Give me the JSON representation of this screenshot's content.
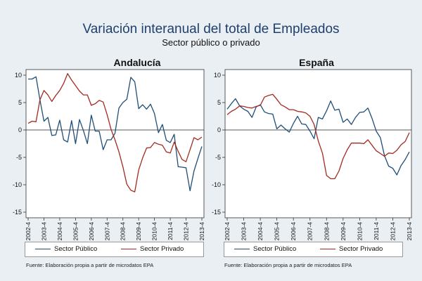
{
  "title": "Variación interanual del total de Empleados",
  "subtitle": "Sector público o privado",
  "source_note": "Fuente: Elaboración propia a partir de microdatos EPA",
  "legend": {
    "public_label": "Sector Público",
    "private_label": "Sector Privado"
  },
  "colors": {
    "public": "#1f4e79",
    "private": "#a42a20",
    "plot_bg": "#ffffff",
    "page_bg": "#eaeff3"
  },
  "chart_data": [
    {
      "type": "line",
      "title": "Andalucía",
      "x_tick_labels": [
        "2002-4",
        "2003-4",
        "2004-4",
        "2005-4",
        "2006-4",
        "2007-4",
        "2008-4",
        "2009-4",
        "2010-4",
        "2011-4",
        "2012-4",
        "2013-4"
      ],
      "x_range": [
        0,
        44
      ],
      "ylim": [
        -15,
        10
      ],
      "y_ticks": [
        -15,
        -10,
        -5,
        0,
        5,
        10
      ],
      "grid": false,
      "legend_position": "bottom",
      "series": [
        {
          "name": "Sector Público",
          "color_key": "public",
          "values": [
            9.3,
            9.3,
            9.7,
            5.5,
            1.6,
            2.3,
            -1.0,
            -0.9,
            1.8,
            -1.8,
            -2.2,
            1.7,
            -2.5,
            1.9,
            -0.1,
            -2.5,
            2.7,
            -0.2,
            -0.2,
            -3.6,
            -1.8,
            -1.8,
            -0.6,
            4.0,
            5.0,
            5.6,
            9.6,
            8.8,
            3.9,
            4.6,
            3.8,
            4.7,
            3.0,
            -0.5,
            1.0,
            -1.9,
            -2.3,
            -0.8,
            -6.7,
            -6.8,
            -6.9,
            -11.1,
            -7.5,
            -5.2,
            -3.0
          ]
        },
        {
          "name": "Sector Privado",
          "color_key": "private",
          "values": [
            1.2,
            1.6,
            1.5,
            5.5,
            7.2,
            6.4,
            5.2,
            6.3,
            7.2,
            8.5,
            10.3,
            9.1,
            8.1,
            7.1,
            6.4,
            6.4,
            4.5,
            4.8,
            5.4,
            5.1,
            2.8,
            0.1,
            -1.8,
            -4.0,
            -6.7,
            -9.9,
            -11.0,
            -11.3,
            -7.3,
            -5.1,
            -3.3,
            -3.2,
            -2.3,
            -2.6,
            -2.8,
            -4.0,
            -4.2,
            -2.2,
            -3.9,
            -5.4,
            -5.8,
            -3.6,
            -1.4,
            -1.8,
            -1.3
          ]
        }
      ]
    },
    {
      "type": "line",
      "title": "España",
      "x_tick_labels": [
        "2002-4",
        "2003-4",
        "2004-4",
        "2005-4",
        "2006-4",
        "2007-4",
        "2008-4",
        "2009-4",
        "2010-4",
        "2011-4",
        "2012-4",
        "2013-4"
      ],
      "x_range": [
        0,
        44
      ],
      "ylim": [
        -15,
        10
      ],
      "y_ticks": [
        -15,
        -10,
        -5,
        0,
        5,
        10
      ],
      "grid": false,
      "legend_position": "bottom",
      "series": [
        {
          "name": "Sector Público",
          "color_key": "public",
          "values": [
            3.8,
            4.8,
            5.7,
            4.4,
            3.8,
            3.4,
            2.3,
            4.2,
            4.6,
            3.3,
            3.0,
            2.9,
            0.2,
            0.9,
            0.2,
            -0.4,
            1.2,
            2.5,
            1.1,
            1.0,
            -0.2,
            -1.6,
            2.3,
            2.0,
            3.5,
            5.3,
            3.6,
            3.8,
            1.4,
            2.0,
            1.0,
            2.3,
            3.2,
            3.3,
            4.0,
            2.1,
            -0.2,
            -1.4,
            -4.7,
            -6.6,
            -7.0,
            -8.2,
            -6.5,
            -5.4,
            -4.0
          ]
        },
        {
          "name": "Sector Privado",
          "color_key": "private",
          "values": [
            2.8,
            3.4,
            3.8,
            4.4,
            4.3,
            4.1,
            4.0,
            4.3,
            4.5,
            6.0,
            6.3,
            6.5,
            5.6,
            4.6,
            4.2,
            3.7,
            3.7,
            3.4,
            3.3,
            3.1,
            2.5,
            1.0,
            -2.0,
            -4.2,
            -8.3,
            -8.9,
            -8.9,
            -7.5,
            -5.2,
            -3.6,
            -2.4,
            -2.4,
            -2.4,
            -2.5,
            -1.8,
            -2.8,
            -3.8,
            -4.3,
            -4.8,
            -4.2,
            -4.3,
            -3.7,
            -2.7,
            -2.1,
            -0.5
          ]
        }
      ]
    }
  ]
}
